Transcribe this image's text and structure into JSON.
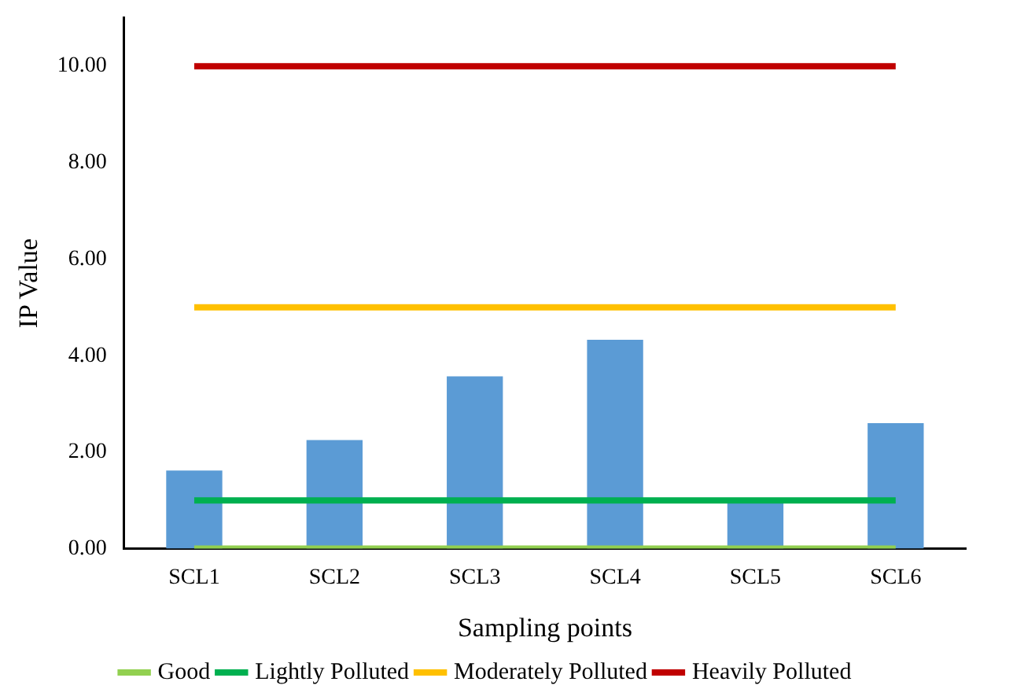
{
  "chart_data": {
    "type": "bar",
    "xlabel": "Sampling points",
    "ylabel": "IP Value",
    "categories": [
      "SCL1",
      "SCL2",
      "SCL3",
      "SCL4",
      "SCL5",
      "SCL6"
    ],
    "series": [
      {
        "color": "#5b9bd5",
        "values": [
          1.62,
          2.25,
          3.57,
          4.33,
          1.05,
          2.6
        ]
      },
      {
        "type": "line",
        "name": "Good",
        "color": "#92d050",
        "values": [
          0,
          0,
          0,
          0,
          0,
          0
        ]
      },
      {
        "type": "line",
        "name": "Lightly Polluted",
        "color": "#00b050",
        "values": [
          1,
          1,
          1,
          1,
          1,
          1
        ]
      },
      {
        "type": "line",
        "name": "Moderately Polluted",
        "color": "#ffc000",
        "values": [
          5,
          5,
          5,
          5,
          5,
          5
        ]
      },
      {
        "type": "line",
        "name": "Heavily Polluted",
        "color": "#c00000",
        "values": [
          10,
          10,
          10,
          10,
          10,
          10
        ]
      }
    ],
    "ylim": [
      0,
      11
    ],
    "yticks": [
      {
        "value": 0,
        "label": "0.00"
      },
      {
        "value": 2,
        "label": "2.00"
      },
      {
        "value": 4,
        "label": "4.00"
      },
      {
        "value": 6,
        "label": "6.00"
      },
      {
        "value": 8,
        "label": "8.00"
      },
      {
        "value": 10,
        "label": "10.00"
      }
    ],
    "grid": false,
    "legend": "bottom",
    "marker": "none"
  }
}
